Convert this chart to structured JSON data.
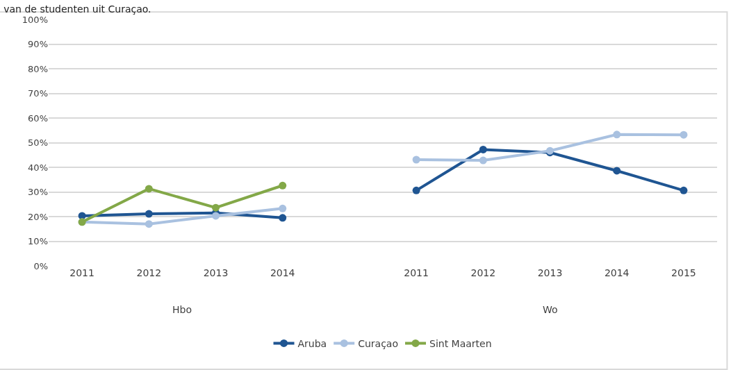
{
  "chart_data": {
    "type": "line",
    "title": "van de studenten uit Curaçao.",
    "categories": [
      "2011",
      "2012",
      "2013",
      "2014",
      null,
      "2011",
      "2012",
      "2013",
      "2014",
      "2015"
    ],
    "series": [
      {
        "name": "Aruba",
        "color": "#1f5592",
        "values": [
          20.3,
          21.1,
          21.5,
          19.5,
          null,
          30.6,
          47.2,
          46.0,
          38.6,
          30.6
        ]
      },
      {
        "name": "Curaçao",
        "color": "#a9c1e0",
        "values": [
          17.8,
          17.0,
          20.3,
          23.3,
          null,
          43.1,
          42.8,
          46.7,
          53.3,
          53.2
        ]
      },
      {
        "name": "Sint Maarten",
        "color": "#83a848",
        "values": [
          17.8,
          31.3,
          23.6,
          32.6,
          null,
          null,
          null,
          null,
          null,
          null
        ]
      }
    ],
    "annotations": [
      "Hbo",
      "Wo"
    ],
    "ylim": [
      0,
      100
    ],
    "yticks": [
      {
        "value": 0,
        "label": "0%"
      },
      {
        "value": 10,
        "label": "10%"
      },
      {
        "value": 20,
        "label": "20%"
      },
      {
        "value": 30,
        "label": "30%"
      },
      {
        "value": 40,
        "label": "40%"
      },
      {
        "value": 50,
        "label": "50%"
      },
      {
        "value": 60,
        "label": "60%"
      },
      {
        "value": 70,
        "label": "70%"
      },
      {
        "value": 80,
        "label": "80%"
      },
      {
        "value": 90,
        "label": "90%"
      },
      {
        "value": 100,
        "label": "100%"
      }
    ],
    "grid": "y",
    "legend": "bottom",
    "marker": "circle",
    "line_style": "solid"
  }
}
